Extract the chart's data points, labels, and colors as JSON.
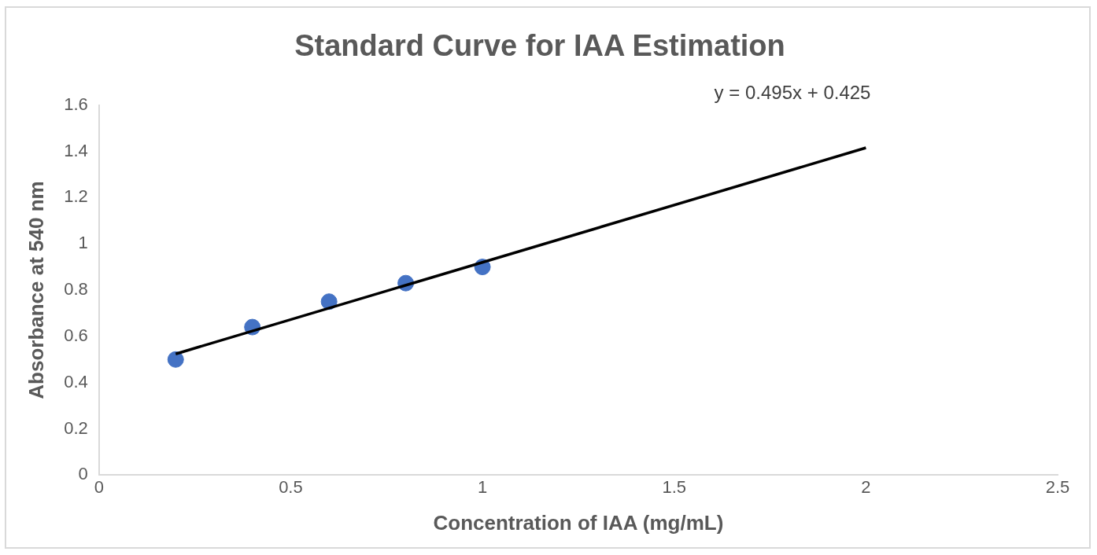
{
  "chart_data": {
    "type": "scatter",
    "title": "Standard Curve for IAA Estimation",
    "xlabel": "Concentration of IAA (mg/mL)",
    "ylabel": "Absorbance at 540 nm",
    "annotations": [
      "y = 0.495x + 0.425"
    ],
    "x": [
      0.2,
      0.4,
      0.6,
      0.8,
      1.0
    ],
    "series": [
      {
        "color": "#4472c4",
        "values": [
          0.5,
          0.64,
          0.75,
          0.83,
          0.9
        ]
      },
      {
        "type": "line",
        "color": "#000000",
        "x": [
          0.2,
          2
        ],
        "values": [
          0.524,
          1.415
        ],
        "marker": "none"
      }
    ],
    "xlim": [
      0,
      2.5
    ],
    "xticks": [
      0,
      0.5,
      1,
      1.5,
      2,
      2.5
    ],
    "ylim": [
      0,
      1.6
    ],
    "yticks": [
      0,
      0.2,
      0.4,
      0.6,
      0.8,
      1,
      1.2,
      1.4,
      1.6
    ],
    "grid": false,
    "legend": false,
    "marker": "circle"
  }
}
